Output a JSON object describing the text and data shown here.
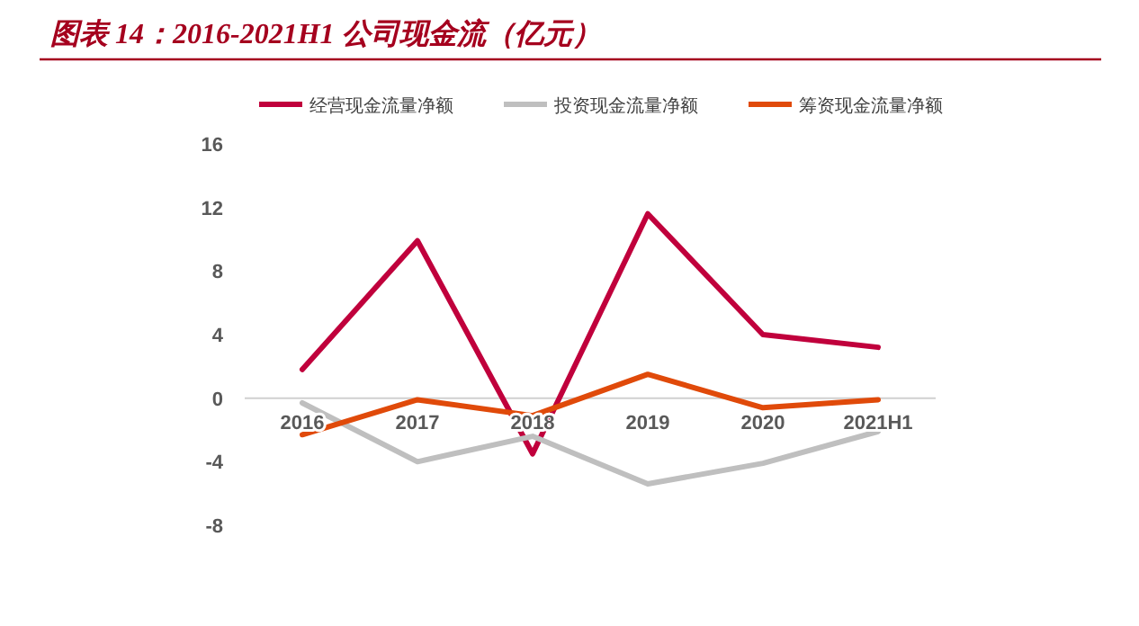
{
  "chart_data": {
    "type": "line",
    "title": "图表 14：2016-2021H1 公司现金流（亿元）",
    "categories": [
      "2016",
      "2017",
      "2018",
      "2019",
      "2020",
      "2021H1"
    ],
    "series": [
      {
        "name": "经营现金流量净额",
        "color": "#c0003c",
        "values": [
          1.8,
          9.9,
          -3.5,
          11.6,
          4.0,
          3.2
        ]
      },
      {
        "name": "投资现金流量净额",
        "color": "#bfbfbf",
        "values": [
          -0.3,
          -4.0,
          -2.4,
          -5.4,
          -4.1,
          -2.1
        ]
      },
      {
        "name": "筹资现金流量净额",
        "color": "#e04a0a",
        "values": [
          -2.3,
          -0.1,
          -1.1,
          1.5,
          -0.6,
          -0.1
        ]
      }
    ],
    "ylim": [
      -8,
      16
    ],
    "yticks": [
      -8,
      -4,
      0,
      4,
      8,
      12,
      16
    ],
    "grid": false,
    "legend": "top",
    "marker": "none",
    "line_style": "solid"
  }
}
